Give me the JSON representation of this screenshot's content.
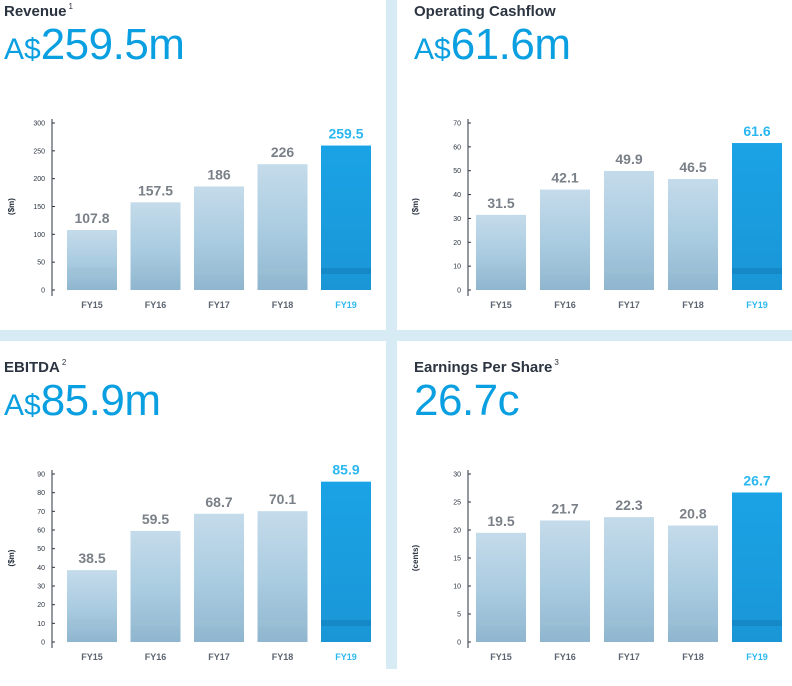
{
  "panels": [
    {
      "title": "Revenue",
      "footnote": "1",
      "prefix": "A$",
      "headline": "259.5m",
      "colors": {
        "bar": "#a9cbe0",
        "highlight": "#1a96d6"
      },
      "chart_data": {
        "type": "bar",
        "title": "Revenue",
        "categories": [
          "FY15",
          "FY16",
          "FY17",
          "FY18",
          "FY19"
        ],
        "values": [
          107.8,
          157.5,
          186,
          226,
          259.5
        ],
        "value_labels": [
          "107.8",
          "157.5",
          "186",
          "226",
          "259.5"
        ],
        "ylabel": "($m)",
        "ylim": [
          0,
          300
        ],
        "yticks": [
          0,
          50,
          100,
          150,
          200,
          250,
          300
        ],
        "highlight_index": 4
      }
    },
    {
      "title": "Operating Cashflow",
      "footnote": "",
      "prefix": "A$",
      "headline": "61.6m",
      "colors": {
        "bar": "#a9cbe0",
        "highlight": "#1a96d6"
      },
      "chart_data": {
        "type": "bar",
        "title": "Operating Cashflow",
        "categories": [
          "FY15",
          "FY16",
          "FY17",
          "FY18",
          "FY19"
        ],
        "values": [
          31.5,
          42.1,
          49.9,
          46.5,
          61.6
        ],
        "value_labels": [
          "31.5",
          "42.1",
          "49.9",
          "46.5",
          "61.6"
        ],
        "ylabel": "($m)",
        "ylim": [
          0,
          70
        ],
        "yticks": [
          0,
          10,
          20,
          30,
          40,
          50,
          60,
          70
        ],
        "highlight_index": 4
      }
    },
    {
      "title": "EBITDA",
      "footnote": "2",
      "prefix": "A$",
      "headline": "85.9m",
      "colors": {
        "bar": "#a9cbe0",
        "highlight": "#1a96d6"
      },
      "chart_data": {
        "type": "bar",
        "title": "EBITDA",
        "categories": [
          "FY15",
          "FY16",
          "FY17",
          "FY18",
          "FY19"
        ],
        "values": [
          38.5,
          59.5,
          68.7,
          70.1,
          85.9
        ],
        "value_labels": [
          "38.5",
          "59.5",
          "68.7",
          "70.1",
          "85.9"
        ],
        "ylabel": "($m)",
        "ylim": [
          0,
          90
        ],
        "yticks": [
          0,
          10,
          20,
          30,
          40,
          50,
          60,
          70,
          80,
          90
        ],
        "highlight_index": 4
      }
    },
    {
      "title": "Earnings Per Share",
      "footnote": "3",
      "prefix": "",
      "headline": "26.7c",
      "colors": {
        "bar": "#a9cbe0",
        "highlight": "#1a96d6"
      },
      "chart_data": {
        "type": "bar",
        "title": "Earnings Per Share",
        "categories": [
          "FY15",
          "FY16",
          "FY17",
          "FY18",
          "FY19"
        ],
        "values": [
          19.5,
          21.7,
          22.3,
          20.8,
          26.7
        ],
        "value_labels": [
          "19.5",
          "21.7",
          "22.3",
          "20.8",
          "26.7"
        ],
        "ylabel": "(cents)",
        "ylim": [
          0,
          30
        ],
        "yticks": [
          0,
          5,
          10,
          15,
          20,
          25,
          30
        ],
        "highlight_index": 4
      }
    }
  ]
}
